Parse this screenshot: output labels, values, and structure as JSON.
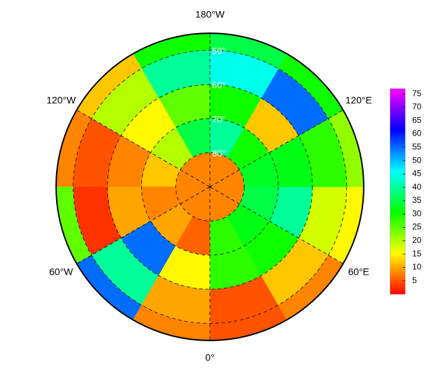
{
  "chart_data": {
    "type": "polar_heatmap",
    "latlim": [
      45,
      90
    ],
    "lat_edges": [
      90,
      80,
      70,
      60,
      50,
      45
    ],
    "lon_edges": [
      0,
      30,
      60,
      90,
      120,
      150,
      180,
      210,
      240,
      270,
      300,
      330,
      360
    ],
    "values": [
      [
        8,
        8,
        8,
        8,
        8,
        8,
        8,
        8,
        8,
        8,
        8,
        8
      ],
      [
        28,
        32,
        35,
        33,
        30,
        40,
        35,
        20,
        12,
        8,
        10,
        6
      ],
      [
        28,
        30,
        40,
        32,
        12,
        30,
        25,
        15,
        8,
        10,
        55,
        15
      ],
      [
        5,
        12,
        18,
        28,
        55,
        45,
        40,
        20,
        5,
        3,
        40,
        10
      ],
      [
        5,
        8,
        15,
        22,
        30,
        35,
        30,
        12,
        8,
        25,
        55,
        8
      ]
    ],
    "lat_ticks": [
      {
        "value": 80,
        "label": "80°"
      },
      {
        "value": 70,
        "label": "70°"
      },
      {
        "value": 60,
        "label": "60°"
      },
      {
        "value": 50,
        "label": "50°"
      }
    ],
    "lon_ticks": [
      {
        "value": 180,
        "label": "180°W"
      },
      {
        "value": 120,
        "label": "120°E"
      },
      {
        "value": 60,
        "label": "60°E"
      },
      {
        "value": 0,
        "label": "0°"
      },
      {
        "value": -60,
        "label": "60°W"
      },
      {
        "value": -120,
        "label": "120°W"
      }
    ],
    "clim": [
      0,
      77
    ],
    "cticks": [
      5,
      10,
      15,
      20,
      25,
      30,
      35,
      40,
      45,
      50,
      55,
      60,
      65,
      70,
      75
    ]
  }
}
